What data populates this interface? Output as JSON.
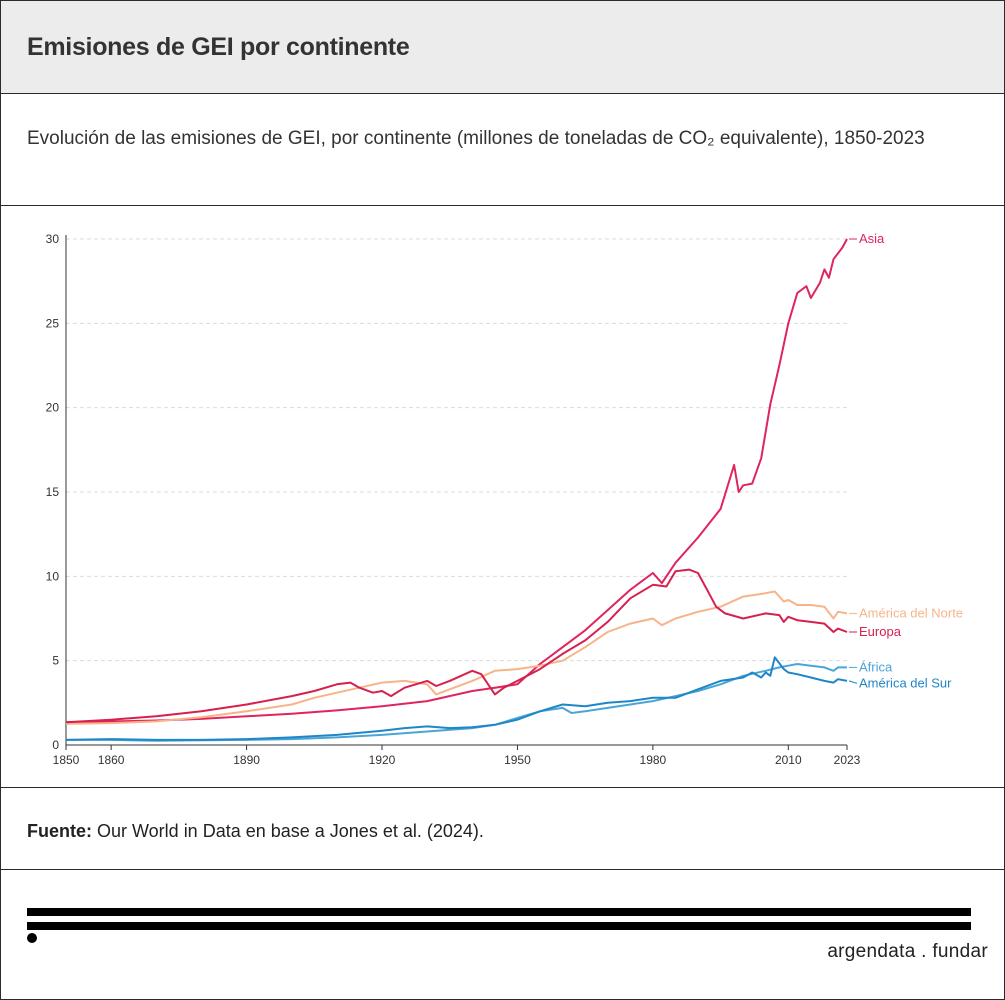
{
  "header": {
    "title": "Emisiones de GEI por continente"
  },
  "subtitle": {
    "text": "Evolución de las emisiones de GEI, por continente (millones de toneladas de CO₂  equivalente), 1850-2023"
  },
  "source": {
    "label": "Fuente:",
    "text": " Our World in Data en base a Jones et al. (2024)."
  },
  "footer": {
    "brand": "argendata . fundar"
  },
  "chart_data": {
    "type": "line",
    "title": "Emisiones de GEI por continente",
    "xlabel": "",
    "ylabel": "",
    "xlim": [
      1850,
      2023
    ],
    "ylim": [
      0,
      30
    ],
    "x_ticks": [
      1850,
      1860,
      1890,
      1920,
      1950,
      1980,
      2010,
      2023
    ],
    "y_ticks": [
      0,
      5,
      10,
      15,
      20,
      25,
      30
    ],
    "grid": "horizontal dashed",
    "legend": "direct labels at right end",
    "series": [
      {
        "name": "Asia",
        "color": "#e0245e",
        "points": [
          [
            1850,
            1.35
          ],
          [
            1860,
            1.4
          ],
          [
            1870,
            1.45
          ],
          [
            1880,
            1.55
          ],
          [
            1890,
            1.7
          ],
          [
            1900,
            1.85
          ],
          [
            1910,
            2.05
          ],
          [
            1920,
            2.3
          ],
          [
            1930,
            2.6
          ],
          [
            1940,
            3.2
          ],
          [
            1945,
            3.4
          ],
          [
            1950,
            3.6
          ],
          [
            1955,
            4.8
          ],
          [
            1960,
            5.8
          ],
          [
            1965,
            6.8
          ],
          [
            1970,
            8.0
          ],
          [
            1975,
            9.2
          ],
          [
            1980,
            10.2
          ],
          [
            1982,
            9.6
          ],
          [
            1985,
            10.8
          ],
          [
            1990,
            12.3
          ],
          [
            1995,
            14.0
          ],
          [
            1998,
            16.6
          ],
          [
            1999,
            15.0
          ],
          [
            2000,
            15.4
          ],
          [
            2002,
            15.5
          ],
          [
            2004,
            17.0
          ],
          [
            2006,
            20.2
          ],
          [
            2008,
            22.5
          ],
          [
            2010,
            25.0
          ],
          [
            2012,
            26.8
          ],
          [
            2014,
            27.2
          ],
          [
            2015,
            26.5
          ],
          [
            2017,
            27.4
          ],
          [
            2018,
            28.2
          ],
          [
            2019,
            27.7
          ],
          [
            2020,
            28.8
          ],
          [
            2022,
            29.5
          ],
          [
            2023,
            30.0
          ]
        ]
      },
      {
        "name": "América del Norte",
        "color": "#f7b48a",
        "points": [
          [
            1850,
            1.25
          ],
          [
            1860,
            1.3
          ],
          [
            1870,
            1.4
          ],
          [
            1880,
            1.65
          ],
          [
            1890,
            2.0
          ],
          [
            1900,
            2.4
          ],
          [
            1905,
            2.8
          ],
          [
            1910,
            3.1
          ],
          [
            1915,
            3.4
          ],
          [
            1920,
            3.7
          ],
          [
            1925,
            3.8
          ],
          [
            1930,
            3.6
          ],
          [
            1932,
            3.0
          ],
          [
            1935,
            3.3
          ],
          [
            1940,
            3.8
          ],
          [
            1945,
            4.4
          ],
          [
            1950,
            4.5
          ],
          [
            1955,
            4.7
          ],
          [
            1960,
            5.0
          ],
          [
            1965,
            5.8
          ],
          [
            1970,
            6.7
          ],
          [
            1975,
            7.2
          ],
          [
            1980,
            7.5
          ],
          [
            1982,
            7.1
          ],
          [
            1985,
            7.5
          ],
          [
            1990,
            7.9
          ],
          [
            1995,
            8.2
          ],
          [
            2000,
            8.8
          ],
          [
            2005,
            9.0
          ],
          [
            2007,
            9.1
          ],
          [
            2009,
            8.5
          ],
          [
            2010,
            8.6
          ],
          [
            2012,
            8.3
          ],
          [
            2015,
            8.3
          ],
          [
            2018,
            8.2
          ],
          [
            2020,
            7.5
          ],
          [
            2021,
            7.9
          ],
          [
            2023,
            7.8
          ]
        ]
      },
      {
        "name": "Europa",
        "color": "#d6204e",
        "points": [
          [
            1850,
            1.35
          ],
          [
            1860,
            1.5
          ],
          [
            1870,
            1.7
          ],
          [
            1880,
            2.0
          ],
          [
            1890,
            2.4
          ],
          [
            1900,
            2.9
          ],
          [
            1905,
            3.2
          ],
          [
            1910,
            3.6
          ],
          [
            1913,
            3.7
          ],
          [
            1915,
            3.4
          ],
          [
            1918,
            3.1
          ],
          [
            1920,
            3.2
          ],
          [
            1922,
            2.9
          ],
          [
            1925,
            3.4
          ],
          [
            1930,
            3.8
          ],
          [
            1932,
            3.5
          ],
          [
            1935,
            3.8
          ],
          [
            1940,
            4.4
          ],
          [
            1942,
            4.2
          ],
          [
            1945,
            3.0
          ],
          [
            1947,
            3.4
          ],
          [
            1950,
            3.8
          ],
          [
            1955,
            4.5
          ],
          [
            1960,
            5.4
          ],
          [
            1965,
            6.2
          ],
          [
            1970,
            7.3
          ],
          [
            1975,
            8.7
          ],
          [
            1980,
            9.5
          ],
          [
            1983,
            9.4
          ],
          [
            1985,
            10.3
          ],
          [
            1988,
            10.4
          ],
          [
            1990,
            10.2
          ],
          [
            1992,
            9.2
          ],
          [
            1994,
            8.2
          ],
          [
            1996,
            7.8
          ],
          [
            2000,
            7.5
          ],
          [
            2005,
            7.8
          ],
          [
            2008,
            7.7
          ],
          [
            2009,
            7.3
          ],
          [
            2010,
            7.6
          ],
          [
            2012,
            7.4
          ],
          [
            2015,
            7.3
          ],
          [
            2018,
            7.2
          ],
          [
            2020,
            6.7
          ],
          [
            2021,
            6.9
          ],
          [
            2023,
            6.7
          ]
        ]
      },
      {
        "name": "África",
        "color": "#4aa5d6",
        "points": [
          [
            1850,
            0.3
          ],
          [
            1860,
            0.3
          ],
          [
            1870,
            0.25
          ],
          [
            1880,
            0.28
          ],
          [
            1890,
            0.3
          ],
          [
            1900,
            0.35
          ],
          [
            1910,
            0.45
          ],
          [
            1920,
            0.6
          ],
          [
            1930,
            0.8
          ],
          [
            1940,
            1.0
          ],
          [
            1945,
            1.2
          ],
          [
            1950,
            1.6
          ],
          [
            1955,
            2.0
          ],
          [
            1960,
            2.2
          ],
          [
            1962,
            1.9
          ],
          [
            1965,
            2.0
          ],
          [
            1970,
            2.2
          ],
          [
            1975,
            2.4
          ],
          [
            1980,
            2.6
          ],
          [
            1985,
            2.9
          ],
          [
            1990,
            3.2
          ],
          [
            1995,
            3.6
          ],
          [
            2000,
            4.1
          ],
          [
            2005,
            4.4
          ],
          [
            2008,
            4.6
          ],
          [
            2010,
            4.7
          ],
          [
            2012,
            4.8
          ],
          [
            2015,
            4.7
          ],
          [
            2018,
            4.6
          ],
          [
            2020,
            4.4
          ],
          [
            2021,
            4.6
          ],
          [
            2023,
            4.6
          ]
        ]
      },
      {
        "name": "América del Sur",
        "color": "#1f86c7",
        "points": [
          [
            1850,
            0.3
          ],
          [
            1860,
            0.35
          ],
          [
            1870,
            0.3
          ],
          [
            1880,
            0.3
          ],
          [
            1890,
            0.35
          ],
          [
            1900,
            0.45
          ],
          [
            1910,
            0.6
          ],
          [
            1920,
            0.85
          ],
          [
            1925,
            1.0
          ],
          [
            1930,
            1.1
          ],
          [
            1935,
            1.0
          ],
          [
            1940,
            1.05
          ],
          [
            1945,
            1.2
          ],
          [
            1950,
            1.5
          ],
          [
            1955,
            2.0
          ],
          [
            1960,
            2.4
          ],
          [
            1965,
            2.3
          ],
          [
            1970,
            2.5
          ],
          [
            1975,
            2.6
          ],
          [
            1980,
            2.8
          ],
          [
            1985,
            2.8
          ],
          [
            1990,
            3.3
          ],
          [
            1995,
            3.8
          ],
          [
            2000,
            4.0
          ],
          [
            2002,
            4.3
          ],
          [
            2004,
            4.0
          ],
          [
            2005,
            4.3
          ],
          [
            2006,
            4.1
          ],
          [
            2007,
            5.2
          ],
          [
            2009,
            4.5
          ],
          [
            2010,
            4.3
          ],
          [
            2012,
            4.2
          ],
          [
            2015,
            4.0
          ],
          [
            2018,
            3.8
          ],
          [
            2020,
            3.7
          ],
          [
            2021,
            3.9
          ],
          [
            2023,
            3.8
          ]
        ]
      }
    ]
  }
}
